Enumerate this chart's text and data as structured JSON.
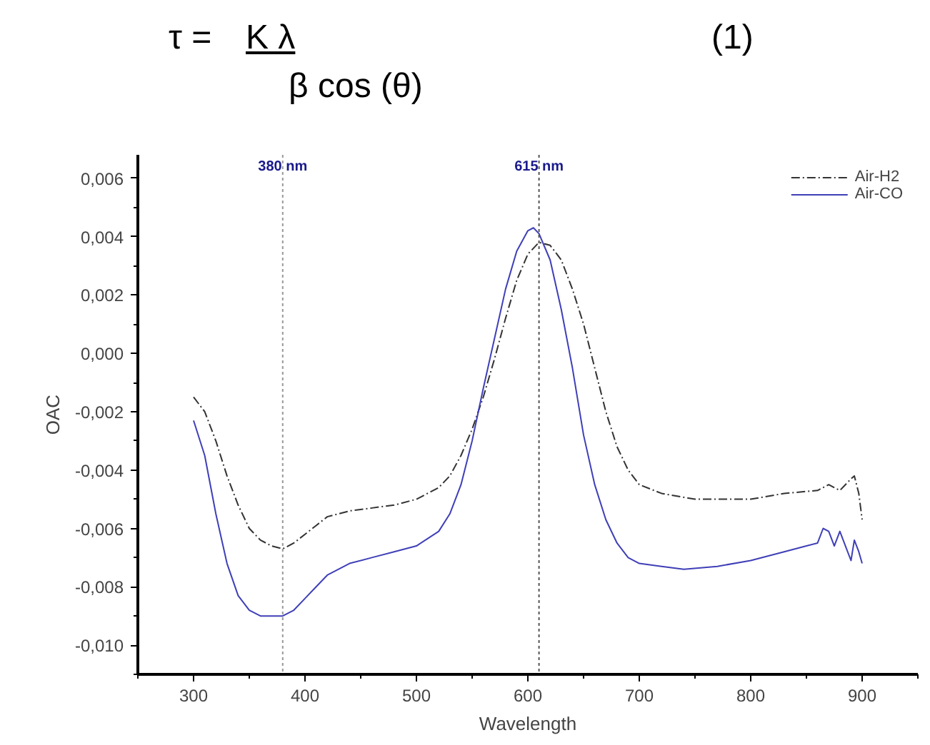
{
  "chart_data": {
    "type": "line",
    "xlabel": "Wavelength",
    "ylabel": "OAC",
    "annotations": [
      "τ =",
      "K λ",
      "β cos (θ)",
      "(1)"
    ],
    "xlim": [
      250,
      950
    ],
    "xticks": [
      300,
      400,
      500,
      600,
      700,
      800,
      900
    ],
    "ylim": [
      -0.011,
      0.0068
    ],
    "yticks": [
      {
        "value": 0.006,
        "label": "0,006"
      },
      {
        "value": 0.004,
        "label": "0,004"
      },
      {
        "value": 0.002,
        "label": "0,002"
      },
      {
        "value": 0,
        "label": "0,000"
      },
      {
        "value": -0.002,
        "label": "-0,002"
      },
      {
        "value": -0.004,
        "label": "-0,004"
      },
      {
        "value": -0.006,
        "label": "-0,006"
      },
      {
        "value": -0.008,
        "label": "-0,008"
      },
      {
        "value": -0.01,
        "label": "-0,010"
      }
    ],
    "grid": false,
    "legend": "top right",
    "marker": "none",
    "ref_lines": [
      {
        "axis": "x",
        "value": 380,
        "label": "380 nm",
        "color": "#999999",
        "line_style": "dotted"
      },
      {
        "axis": "x",
        "value": 610,
        "label": "615 nm",
        "color": "#555555",
        "line_style": "dotted"
      }
    ],
    "series": [
      {
        "name": "Air-H2",
        "color": "#333333",
        "line_style": "dashed",
        "x": [
          300,
          310,
          320,
          330,
          340,
          350,
          360,
          370,
          380,
          390,
          400,
          410,
          420,
          440,
          460,
          480,
          500,
          520,
          530,
          540,
          550,
          560,
          570,
          580,
          590,
          600,
          610,
          620,
          630,
          640,
          650,
          660,
          670,
          680,
          690,
          700,
          720,
          750,
          780,
          800,
          830,
          860,
          870,
          880,
          890,
          893,
          897,
          900
        ],
        "values": [
          -0.0015,
          -0.002,
          -0.003,
          -0.0042,
          -0.0052,
          -0.006,
          -0.0064,
          -0.0066,
          -0.0067,
          -0.0065,
          -0.0062,
          -0.0059,
          -0.0056,
          -0.0054,
          -0.0053,
          -0.0052,
          -0.005,
          -0.0046,
          -0.0042,
          -0.0035,
          -0.0026,
          -0.0015,
          -0.0002,
          0.0012,
          0.0025,
          0.0034,
          0.0038,
          0.0037,
          0.0032,
          0.0022,
          0.001,
          -0.0005,
          -0.002,
          -0.0032,
          -0.004,
          -0.0045,
          -0.0048,
          -0.005,
          -0.005,
          -0.005,
          -0.0048,
          -0.0047,
          -0.0045,
          -0.0047,
          -0.0043,
          -0.0042,
          -0.0048,
          -0.0057
        ]
      },
      {
        "name": "Air-CO",
        "color": "#3f3fb8",
        "line_style": "solid",
        "x": [
          300,
          310,
          320,
          330,
          340,
          350,
          360,
          370,
          380,
          390,
          400,
          410,
          420,
          440,
          460,
          480,
          500,
          520,
          530,
          540,
          550,
          560,
          570,
          580,
          590,
          600,
          605,
          610,
          620,
          630,
          640,
          650,
          660,
          670,
          680,
          690,
          700,
          720,
          740,
          770,
          800,
          830,
          850,
          860,
          865,
          870,
          875,
          880,
          885,
          890,
          893,
          897,
          900
        ],
        "values": [
          -0.0023,
          -0.0035,
          -0.0055,
          -0.0072,
          -0.0083,
          -0.0088,
          -0.009,
          -0.009,
          -0.009,
          -0.0088,
          -0.0084,
          -0.008,
          -0.0076,
          -0.0072,
          -0.007,
          -0.0068,
          -0.0066,
          -0.0061,
          -0.0055,
          -0.0045,
          -0.003,
          -0.0012,
          0.0005,
          0.0022,
          0.0035,
          0.0042,
          0.0043,
          0.0041,
          0.0032,
          0.0015,
          -0.0005,
          -0.0028,
          -0.0045,
          -0.0057,
          -0.0065,
          -0.007,
          -0.0072,
          -0.0073,
          -0.0074,
          -0.0073,
          -0.0071,
          -0.0068,
          -0.0066,
          -0.0065,
          -0.006,
          -0.0061,
          -0.0066,
          -0.0061,
          -0.0066,
          -0.0071,
          -0.0064,
          -0.0068,
          -0.0072
        ]
      }
    ]
  }
}
